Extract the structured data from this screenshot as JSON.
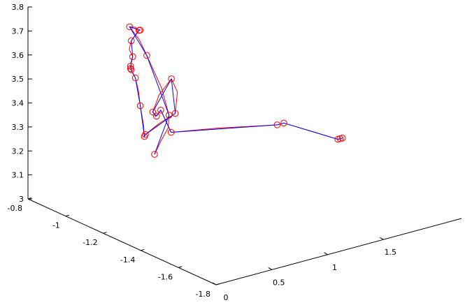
{
  "chart_data": {
    "type": "scatter",
    "subtype": "3d-trajectory",
    "title": "",
    "xlabel": "",
    "ylabel": "",
    "zlabel": "",
    "grid": false,
    "axes": {
      "z": {
        "ticks": [
          3,
          3.1,
          3.2,
          3.3,
          3.4,
          3.5,
          3.6,
          3.7,
          3.8
        ],
        "tick_labels": [
          "3",
          "3.1",
          "3.2",
          "3.3",
          "3.4",
          "3.5",
          "3.6",
          "3.7",
          "3.8"
        ]
      },
      "y": {
        "ticks": [
          -0.8,
          -1,
          -1.2,
          -1.4,
          -1.6,
          -1.8
        ],
        "tick_labels": [
          "-0.8",
          "-1",
          "-1.2",
          "-1.4",
          "-1.6",
          "-1.8"
        ]
      },
      "x": {
        "ticks": [
          0,
          0.5,
          1,
          1.5
        ],
        "tick_labels": [
          "0",
          "0.5",
          "1",
          "1.5"
        ]
      }
    },
    "series": [
      {
        "style": "blue-line-with-red-circle-markers",
        "line_color": "#0000ff",
        "marker_color": "#ff0000",
        "points": [
          [
            0.73,
            -1.04,
            3.18
          ],
          [
            0.91,
            -1.01,
            3.31
          ],
          [
            0.93,
            -0.88,
            3.51
          ],
          [
            0.86,
            -0.83,
            3.62
          ],
          [
            0.82,
            -0.91,
            3.64
          ],
          [
            0.81,
            -0.91,
            3.64
          ],
          [
            0.64,
            -0.97,
            3.64
          ],
          [
            0.45,
            -1.09,
            3.64
          ],
          [
            0.38,
            -1.12,
            3.62
          ],
          [
            0.37,
            -1.13,
            3.61
          ],
          [
            0.38,
            -1.12,
            3.61
          ],
          [
            0.44,
            -1.11,
            3.56
          ],
          [
            0.45,
            -1.13,
            3.45
          ],
          [
            0.42,
            -1.17,
            3.34
          ],
          [
            0.48,
            -1.14,
            3.33
          ],
          [
            0.73,
            -1.15,
            3.39
          ],
          [
            0.78,
            -1.1,
            3.51
          ],
          [
            0.68,
            -1.06,
            3.37
          ],
          [
            0.68,
            -1.08,
            3.36
          ],
          [
            0.6,
            -1.15,
            3.42
          ],
          [
            0.71,
            -1.14,
            3.31
          ],
          [
            1.34,
            -1.33,
            3.33
          ],
          [
            1.4,
            -1.33,
            3.33
          ],
          [
            1.8,
            -1.38,
            3.23
          ],
          [
            1.84,
            -1.38,
            3.23
          ],
          [
            1.82,
            -1.38,
            3.23
          ]
        ]
      },
      {
        "style": "red-line",
        "line_color": "#ff0000",
        "points": [
          [
            0.73,
            -1.04,
            3.18
          ],
          [
            0.8,
            -1.03,
            3.22
          ],
          [
            0.87,
            -1.03,
            3.27
          ],
          [
            0.91,
            -1.01,
            3.31
          ],
          [
            0.93,
            -0.96,
            3.4
          ],
          [
            0.93,
            -0.88,
            3.51
          ],
          [
            0.91,
            -0.85,
            3.57
          ],
          [
            0.86,
            -0.83,
            3.62
          ],
          [
            0.83,
            -0.88,
            3.64
          ],
          [
            0.78,
            -0.92,
            3.64
          ],
          [
            0.64,
            -0.97,
            3.64
          ],
          [
            0.52,
            -1.03,
            3.64
          ],
          [
            0.45,
            -1.09,
            3.64
          ],
          [
            0.4,
            -1.11,
            3.63
          ],
          [
            0.37,
            -1.13,
            3.61
          ],
          [
            0.4,
            -1.11,
            3.6
          ],
          [
            0.44,
            -1.11,
            3.56
          ],
          [
            0.45,
            -1.12,
            3.51
          ],
          [
            0.45,
            -1.13,
            3.45
          ],
          [
            0.43,
            -1.16,
            3.38
          ],
          [
            0.42,
            -1.17,
            3.34
          ],
          [
            0.48,
            -1.14,
            3.33
          ],
          [
            0.6,
            -1.14,
            3.36
          ],
          [
            0.73,
            -1.15,
            3.39
          ],
          [
            0.8,
            -1.12,
            3.46
          ],
          [
            0.78,
            -1.1,
            3.51
          ],
          [
            0.72,
            -1.07,
            3.44
          ],
          [
            0.68,
            -1.06,
            3.37
          ],
          [
            0.67,
            -1.08,
            3.36
          ],
          [
            0.62,
            -1.13,
            3.4
          ],
          [
            0.6,
            -1.15,
            3.42
          ],
          [
            0.68,
            -1.15,
            3.33
          ],
          [
            0.71,
            -1.14,
            3.31
          ],
          [
            1.0,
            -1.22,
            3.32
          ],
          [
            1.34,
            -1.33,
            3.33
          ],
          [
            1.4,
            -1.33,
            3.33
          ],
          [
            1.6,
            -1.35,
            3.28
          ],
          [
            1.8,
            -1.38,
            3.23
          ],
          [
            1.84,
            -1.38,
            3.23
          ]
        ]
      }
    ]
  }
}
